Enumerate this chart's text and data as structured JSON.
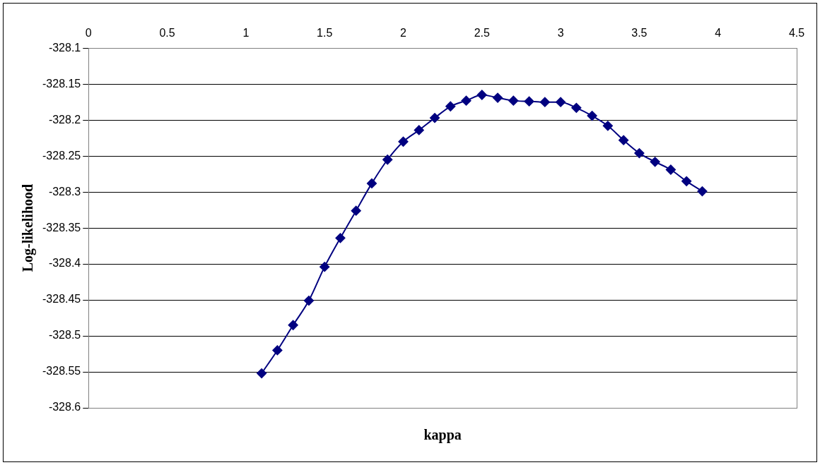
{
  "chart_data": {
    "type": "line",
    "xlabel": "kappa",
    "ylabel": "Log-likelihood",
    "x": [
      1.1,
      1.2,
      1.3,
      1.4,
      1.5,
      1.6,
      1.7,
      1.8,
      1.9,
      2.0,
      2.1,
      2.2,
      2.3,
      2.4,
      2.5,
      2.6,
      2.7,
      2.8,
      2.9,
      3.0,
      3.1,
      3.2,
      3.3,
      3.4,
      3.5,
      3.6,
      3.7,
      3.8,
      3.9
    ],
    "series": [
      {
        "color": "#000080",
        "values": [
          -328.552,
          -328.52,
          -328.485,
          -328.451,
          -328.404,
          -328.364,
          -328.326,
          -328.288,
          -328.255,
          -328.23,
          -328.214,
          -328.197,
          -328.181,
          -328.173,
          -328.165,
          -328.169,
          -328.173,
          -328.174,
          -328.175,
          -328.175,
          -328.183,
          -328.194,
          -328.208,
          -328.228,
          -328.246,
          -328.258,
          -328.269,
          -328.285,
          -328.299
        ]
      }
    ],
    "xlim": [
      0,
      4.5
    ],
    "xticks": [
      0,
      0.5,
      1,
      1.5,
      2,
      2.5,
      3,
      3.5,
      4,
      4.5
    ],
    "ylim": [
      -328.6,
      -328.1
    ],
    "yticks": [
      -328.6,
      -328.55,
      -328.5,
      -328.45,
      -328.4,
      -328.35,
      -328.3,
      -328.25,
      -328.2,
      -328.15,
      -328.1
    ],
    "grid": "y",
    "legend": false,
    "marker": "diamond",
    "line_style": "solid"
  }
}
